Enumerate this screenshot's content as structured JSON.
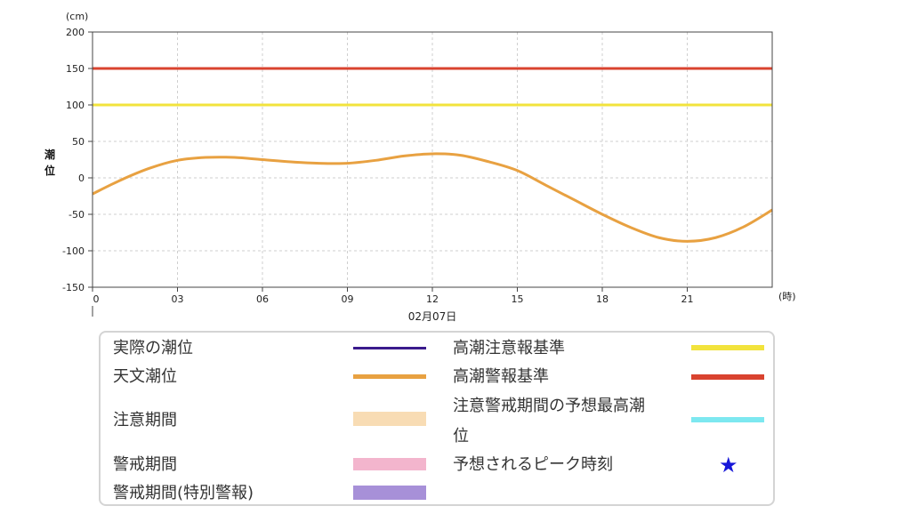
{
  "chart_data": {
    "type": "line",
    "y_unit": "(cm)",
    "ylabel": "潮位",
    "x_unit": "(時)",
    "date_label": "02月07日",
    "ylim": [
      -150,
      200
    ],
    "xlim": [
      0,
      24
    ],
    "x_ticks": [
      {
        "v": 0,
        "label": "0"
      },
      {
        "v": 3,
        "label": "03"
      },
      {
        "v": 6,
        "label": "06"
      },
      {
        "v": 9,
        "label": "09"
      },
      {
        "v": 12,
        "label": "12"
      },
      {
        "v": 15,
        "label": "15"
      },
      {
        "v": 18,
        "label": "18"
      },
      {
        "v": 21,
        "label": "21"
      }
    ],
    "y_ticks": [
      200,
      150,
      100,
      50,
      0,
      -50,
      -100,
      -150
    ],
    "grid": true,
    "reference_lines": [
      {
        "name": "高潮警報基準",
        "value": 150,
        "color": "#d9432f"
      },
      {
        "name": "高潮注意報基準",
        "value": 100,
        "color": "#f2e33c"
      }
    ],
    "series": [
      {
        "name": "天文潮位",
        "color": "#e8a141",
        "x": [
          0,
          1,
          2,
          3,
          4,
          5,
          6,
          7,
          8,
          9,
          10,
          11,
          12,
          13,
          14,
          15,
          16,
          17,
          18,
          19,
          20,
          21,
          22,
          23,
          24
        ],
        "y": [
          -22,
          -3,
          13,
          24,
          28,
          28,
          25,
          22,
          20,
          20,
          24,
          30,
          33,
          31,
          22,
          10,
          -10,
          -30,
          -50,
          -68,
          -82,
          -87,
          -82,
          -67,
          -44
        ]
      }
    ]
  },
  "legend": [
    {
      "label": "実際の潮位",
      "color": "#3a1a8c",
      "kind": "line"
    },
    {
      "label": "天文潮位",
      "color": "#e8a141",
      "kind": "thick"
    },
    {
      "label": "注意期間",
      "color": "#f8dcb4",
      "kind": "band"
    },
    {
      "label": "警戒期間",
      "color": "#f3b5cd",
      "kind": "band"
    },
    {
      "label": "警戒期間(特別警報)",
      "color": "#a790d8",
      "kind": "band"
    },
    {
      "label": "高潮注意報基準",
      "color": "#f2e33c",
      "kind": "thick"
    },
    {
      "label": "高潮警報基準",
      "color": "#d9432f",
      "kind": "thick"
    },
    {
      "label": "注意警戒期間の予想最高潮",
      "label2": "位",
      "color": "#7de8f0",
      "kind": "thick"
    },
    {
      "label": "予想されるピーク時刻",
      "color": "#1717d8",
      "kind": "star",
      "icon": "star-icon"
    }
  ]
}
